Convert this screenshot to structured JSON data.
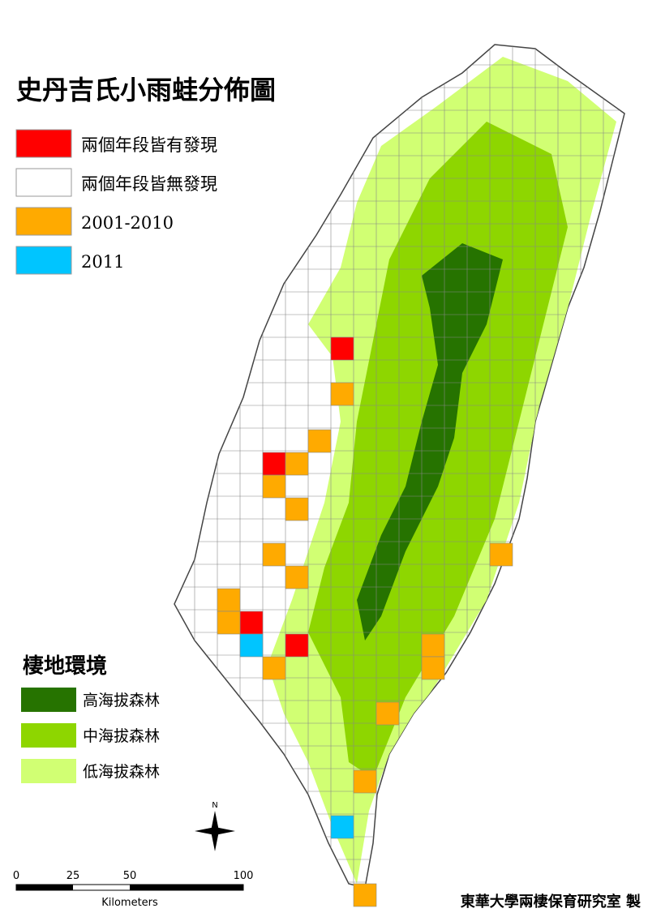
{
  "title": "史丹吉氏小雨蛙分佈圖",
  "legend": {
    "items": [
      {
        "label": "兩個年段皆有發現",
        "color": "#ff0000"
      },
      {
        "label": "兩個年段皆無發現",
        "color": "#ffffff"
      },
      {
        "label": "2001-2010",
        "color": "#ffaa00"
      },
      {
        "label": "2011",
        "color": "#00c5ff"
      }
    ]
  },
  "habitat": {
    "title": "棲地環境",
    "items": [
      {
        "label": "高海拔森林",
        "color": "#267300"
      },
      {
        "label": "中海拔森林",
        "color": "#8ed600"
      },
      {
        "label": "低海拔森林",
        "color": "#d1ff73"
      }
    ]
  },
  "north": "N",
  "scale": {
    "labels": [
      "0",
      "25",
      "50",
      "100"
    ],
    "unit": "Kilometers"
  },
  "credit": "東華大學兩棲保育研究室 製"
}
